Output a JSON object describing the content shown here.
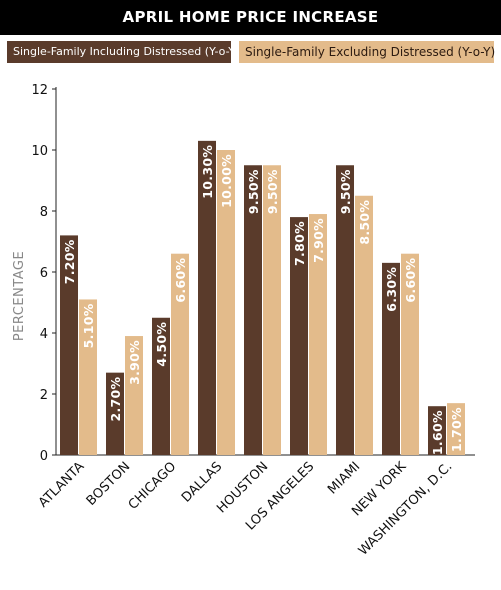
{
  "chart_data": {
    "type": "bar",
    "title": "APRIL HOME PRICE INCREASE",
    "ylabel": "PERCENTAGE",
    "xlabel": "",
    "ylim": [
      0,
      12
    ],
    "yticks": [
      0,
      2,
      4,
      6,
      8,
      10,
      12
    ],
    "grid": false,
    "legend_position": "top",
    "categories": [
      "ATLANTA",
      "BOSTON",
      "CHICAGO",
      "DALLAS",
      "HOUSTON",
      "LOS ANGELES",
      "MIAMI",
      "NEW YORK",
      "WASHINGTON, D.C."
    ],
    "series": [
      {
        "name": "Single-Family Including Distressed (Y-o-Y)",
        "color": "#5a3b2b",
        "values": [
          7.2,
          2.7,
          4.5,
          10.3,
          9.5,
          7.8,
          9.5,
          6.3,
          1.6
        ],
        "labels": [
          "7.20%",
          "2.70%",
          "4.50%",
          "10.30%",
          "9.50%",
          "7.80%",
          "9.50%",
          "6.30%",
          "1.60%"
        ]
      },
      {
        "name": "Single-Family Excluding Distressed (Y-o-Y)",
        "color": "#e3bb8b",
        "values": [
          5.1,
          3.9,
          6.6,
          10.0,
          9.5,
          7.9,
          8.5,
          6.6,
          1.7
        ],
        "labels": [
          "5.10%",
          "3.90%",
          "6.60%",
          "10.00%",
          "9.50%",
          "7.90%",
          "8.50%",
          "6.60%",
          "1.70%"
        ]
      }
    ]
  }
}
